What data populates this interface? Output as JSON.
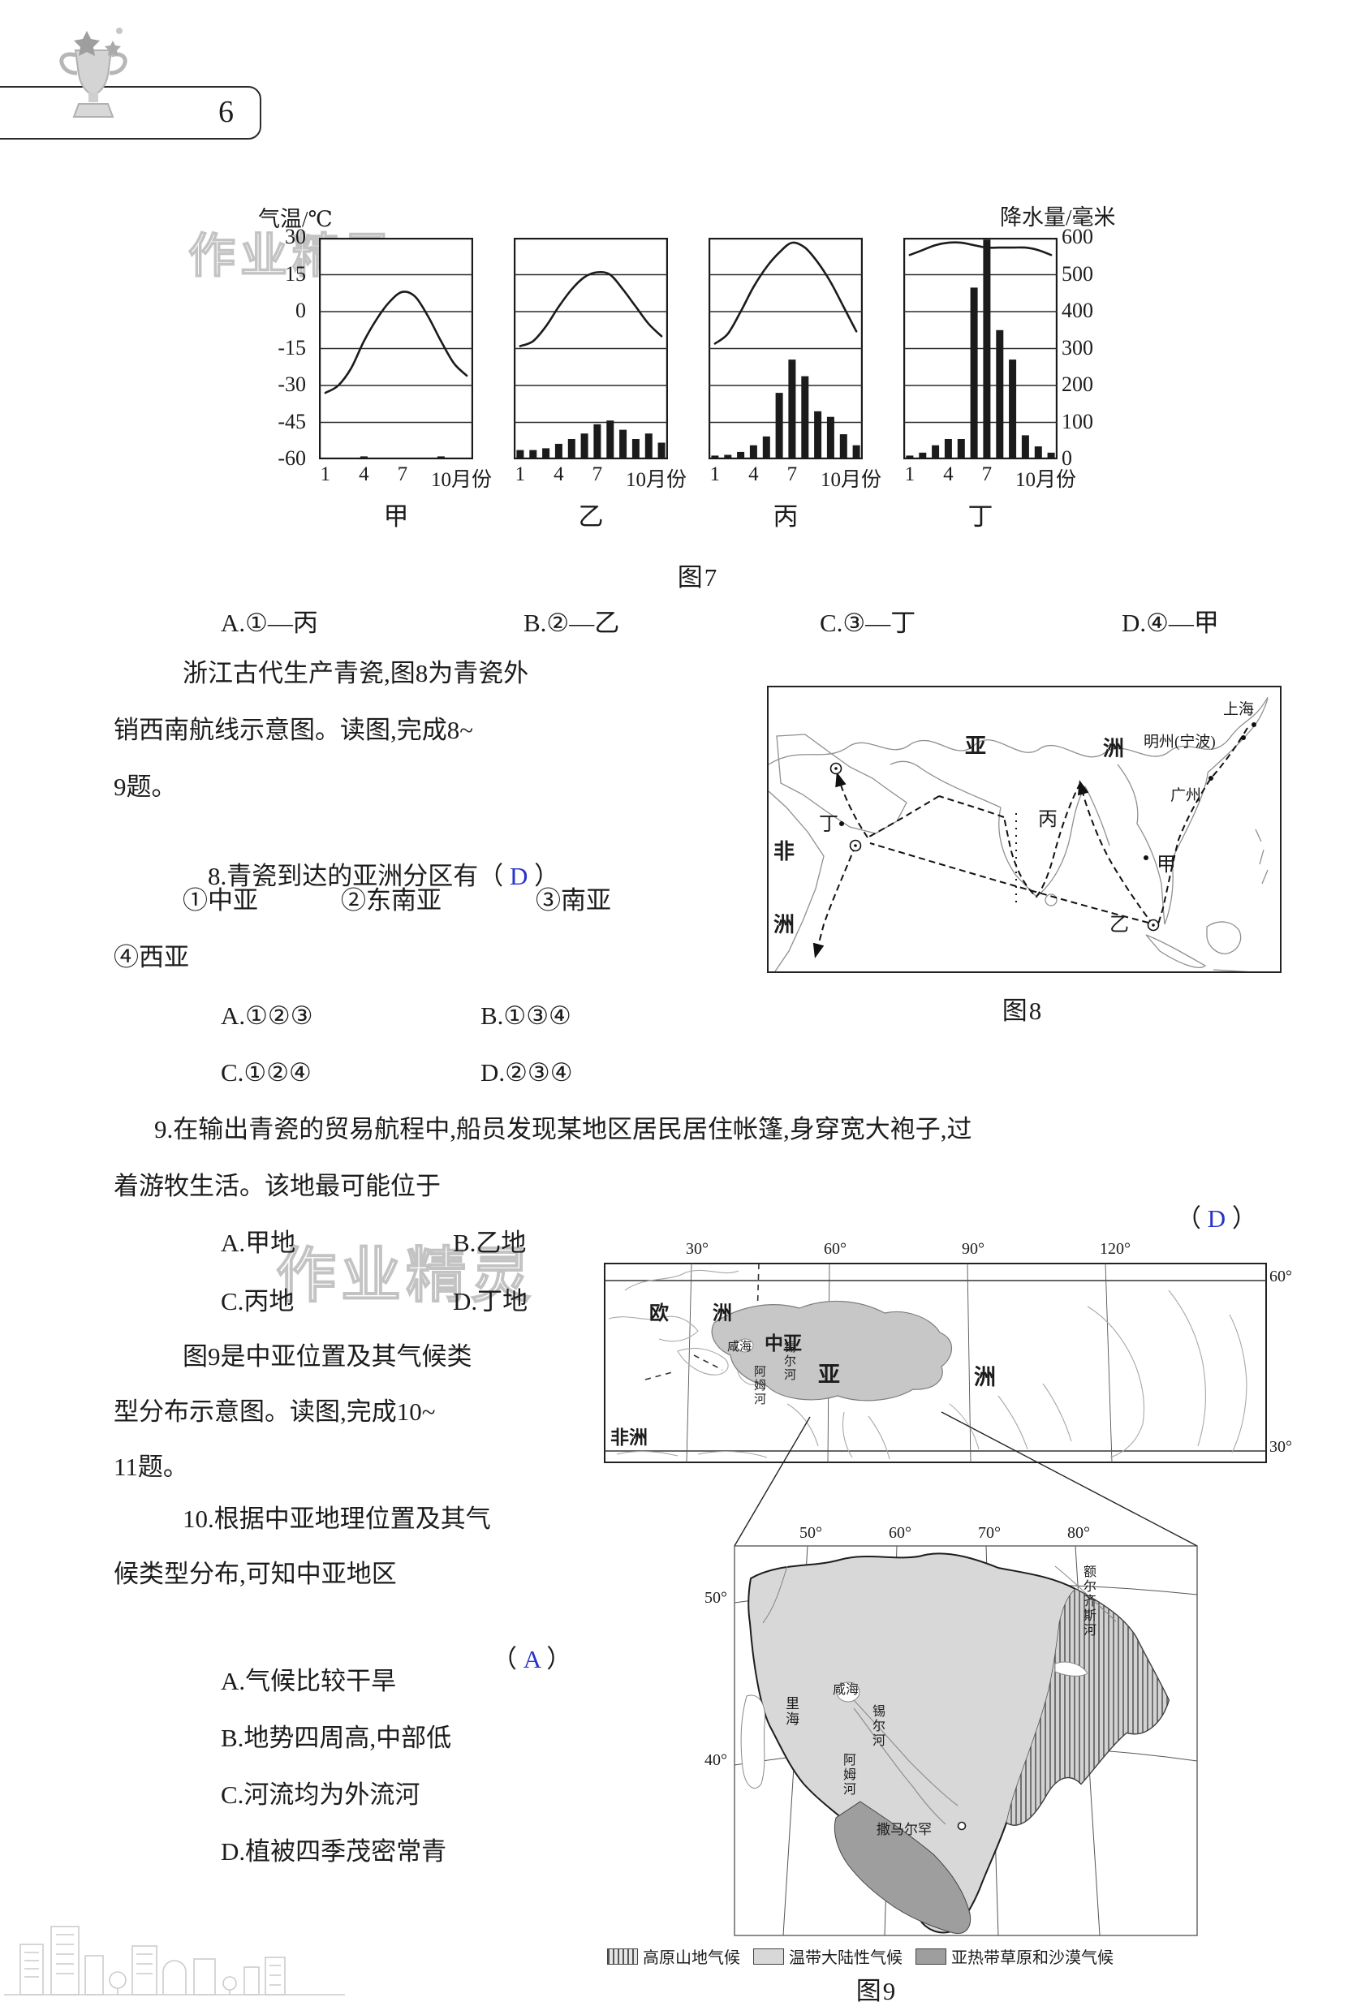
{
  "ui": {
    "paren_open": "（ ",
    "paren_close": " ）"
  },
  "colors": {
    "answer": "#2633cc",
    "text": "#1c1c1c"
  },
  "header": {
    "page_number": "6",
    "trophy_icon": "trophy-with-stars"
  },
  "watermark": {
    "text": "作业精灵"
  },
  "chart_data": {
    "type": "bar+line climate charts",
    "figure": "图7",
    "caption": "图7",
    "months": [
      1,
      2,
      3,
      4,
      5,
      6,
      7,
      8,
      9,
      10,
      11,
      12
    ],
    "temp_axis": {
      "title": "气温/℃",
      "ticks": [
        30,
        15,
        0,
        -15,
        -30,
        -45,
        -60
      ],
      "range": [
        -60,
        30
      ]
    },
    "precip_axis": {
      "title": "降水量/毫米",
      "ticks": [
        600,
        500,
        400,
        300,
        200,
        100,
        0
      ],
      "range": [
        0,
        600
      ]
    },
    "x_ticks": [
      "1",
      "4",
      "7"
    ],
    "x_last_tick": "10月份",
    "stations": [
      {
        "name": "甲",
        "temp": [
          -33,
          -30,
          -23,
          -12,
          -3,
          4,
          8,
          6,
          -2,
          -12,
          -21,
          -26
        ],
        "precip": [
          0,
          0,
          0,
          8,
          0,
          0,
          0,
          0,
          0,
          8,
          0,
          0
        ]
      },
      {
        "name": "乙",
        "temp": [
          -14,
          -12,
          -6,
          2,
          9,
          14,
          16,
          15,
          9,
          2,
          -5,
          -10
        ],
        "precip": [
          25,
          25,
          30,
          42,
          55,
          70,
          95,
          105,
          80,
          55,
          70,
          45
        ]
      },
      {
        "name": "丙",
        "temp": [
          -13,
          -9,
          0,
          10,
          18,
          24,
          28,
          26,
          20,
          12,
          2,
          -8
        ],
        "precip": [
          10,
          12,
          20,
          38,
          62,
          180,
          270,
          225,
          130,
          115,
          68,
          38
        ]
      },
      {
        "name": "丁",
        "temp": [
          23,
          25,
          27,
          28,
          28,
          27,
          26,
          26,
          26,
          26,
          25,
          23
        ],
        "precip": [
          10,
          18,
          38,
          55,
          55,
          465,
          595,
          350,
          270,
          65,
          35,
          18
        ]
      }
    ]
  },
  "q7": {
    "options": [
      "A.①—丙",
      "B.②—乙",
      "C.③—丁",
      "D.④—甲"
    ]
  },
  "passage8": {
    "line1": "浙江古代生产青瓷,图8为青瓷外",
    "line2": "销西南航线示意图。读图,完成8~",
    "line3": "9题。"
  },
  "q8": {
    "stem": "8.青瓷到达的亚洲分区有",
    "answer": "D",
    "subs": [
      "①中亚",
      "②东南亚",
      "③南亚",
      "④西亚"
    ],
    "choices": [
      "A.①②③",
      "B.①③④",
      "C.①②④",
      "D.②③④"
    ]
  },
  "figure8": {
    "caption": "图8",
    "labels": {
      "asia1": "亚",
      "asia2": "洲",
      "africa1": "非",
      "africa2": "洲",
      "shanghai": "上海",
      "mingzhou": "明州(宁波)",
      "guangzhou": "广州",
      "jia": "甲",
      "yi": "乙",
      "bing": "丙",
      "ding": "丁"
    }
  },
  "q9": {
    "line1": "9.在输出青瓷的贸易航程中,船员发现某地区居民居住帐篷,身穿宽大袍子,过",
    "line2": "着游牧生活。该地最可能位于",
    "answer": "D",
    "choices": [
      "A.甲地",
      "B.乙地",
      "C.丙地",
      "D.丁地"
    ]
  },
  "passage9": {
    "line1": "图9是中亚位置及其气候类",
    "line2": "型分布示意图。读图,完成10~",
    "line3": "11题。"
  },
  "q10": {
    "line1": "10.根据中亚地理位置及其气",
    "line2": "候类型分布,可知中亚地区",
    "answer": "A",
    "choices": [
      "A.气候比较干旱",
      "B.地势四周高,中部低",
      "C.河流均为外流河",
      "D.植被四季茂密常青"
    ]
  },
  "figure9": {
    "caption": "图9",
    "upper": {
      "top_ticks": [
        "30°",
        "60°",
        "90°",
        "120°"
      ],
      "right_tick_60": "60°",
      "right_tick_30": "30°",
      "labels": {
        "europe1": "欧",
        "europe2": "洲",
        "central_asia": "中亚",
        "asia_big": "亚",
        "asia_big2": "洲",
        "africa": "非洲",
        "aral": "咸海",
        "syr": "锡尔河",
        "amu": "阿姆河"
      }
    },
    "lower": {
      "top_ticks": [
        "50°",
        "60°",
        "70°",
        "80°"
      ],
      "left_tick_50": "50°",
      "left_tick_40": "40°",
      "labels": {
        "irtysh": "额尔齐斯河",
        "caspian": "里海",
        "aral": "咸海",
        "syr": "锡尔河",
        "amu": "阿姆河",
        "samarkand": "撒马尔罕"
      }
    },
    "legend": [
      {
        "swatch": "hatch",
        "label": "高原山地气候"
      },
      {
        "swatch": "light",
        "label": "温带大陆性气候"
      },
      {
        "swatch": "dark",
        "label": "亚热带草原和沙漠气候"
      }
    ]
  }
}
